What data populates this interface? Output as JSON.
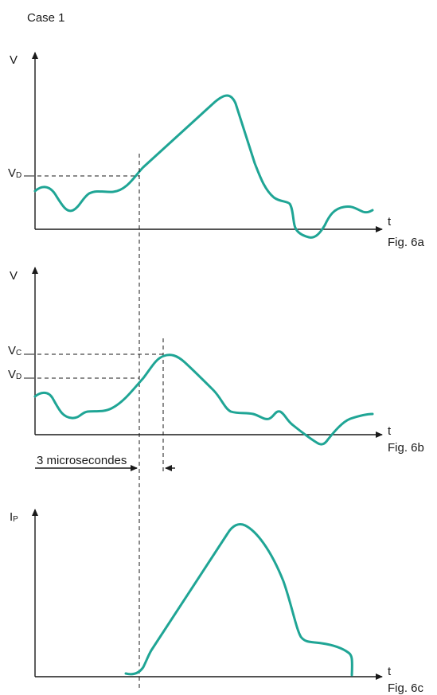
{
  "case_title": "Case 1",
  "panels": [
    {
      "id": "6a",
      "y_axis": "V",
      "x_axis": "t",
      "caption": "Fig. 6a",
      "level_labels": [
        {
          "main": "V",
          "sub": "D"
        }
      ]
    },
    {
      "id": "6b",
      "y_axis": "V",
      "x_axis": "t",
      "caption": "Fig. 6b",
      "level_labels": [
        {
          "main": "V",
          "sub": "C"
        },
        {
          "main": "V",
          "sub": "D"
        }
      ],
      "interval_label": "3 microsecondes"
    },
    {
      "id": "6c",
      "y_axis_main": "I",
      "y_axis_sub": "P",
      "x_axis": "t",
      "caption": "Fig. 6c"
    }
  ],
  "colors": {
    "curve": "#1fa595",
    "axis": "#1a1a1a"
  }
}
